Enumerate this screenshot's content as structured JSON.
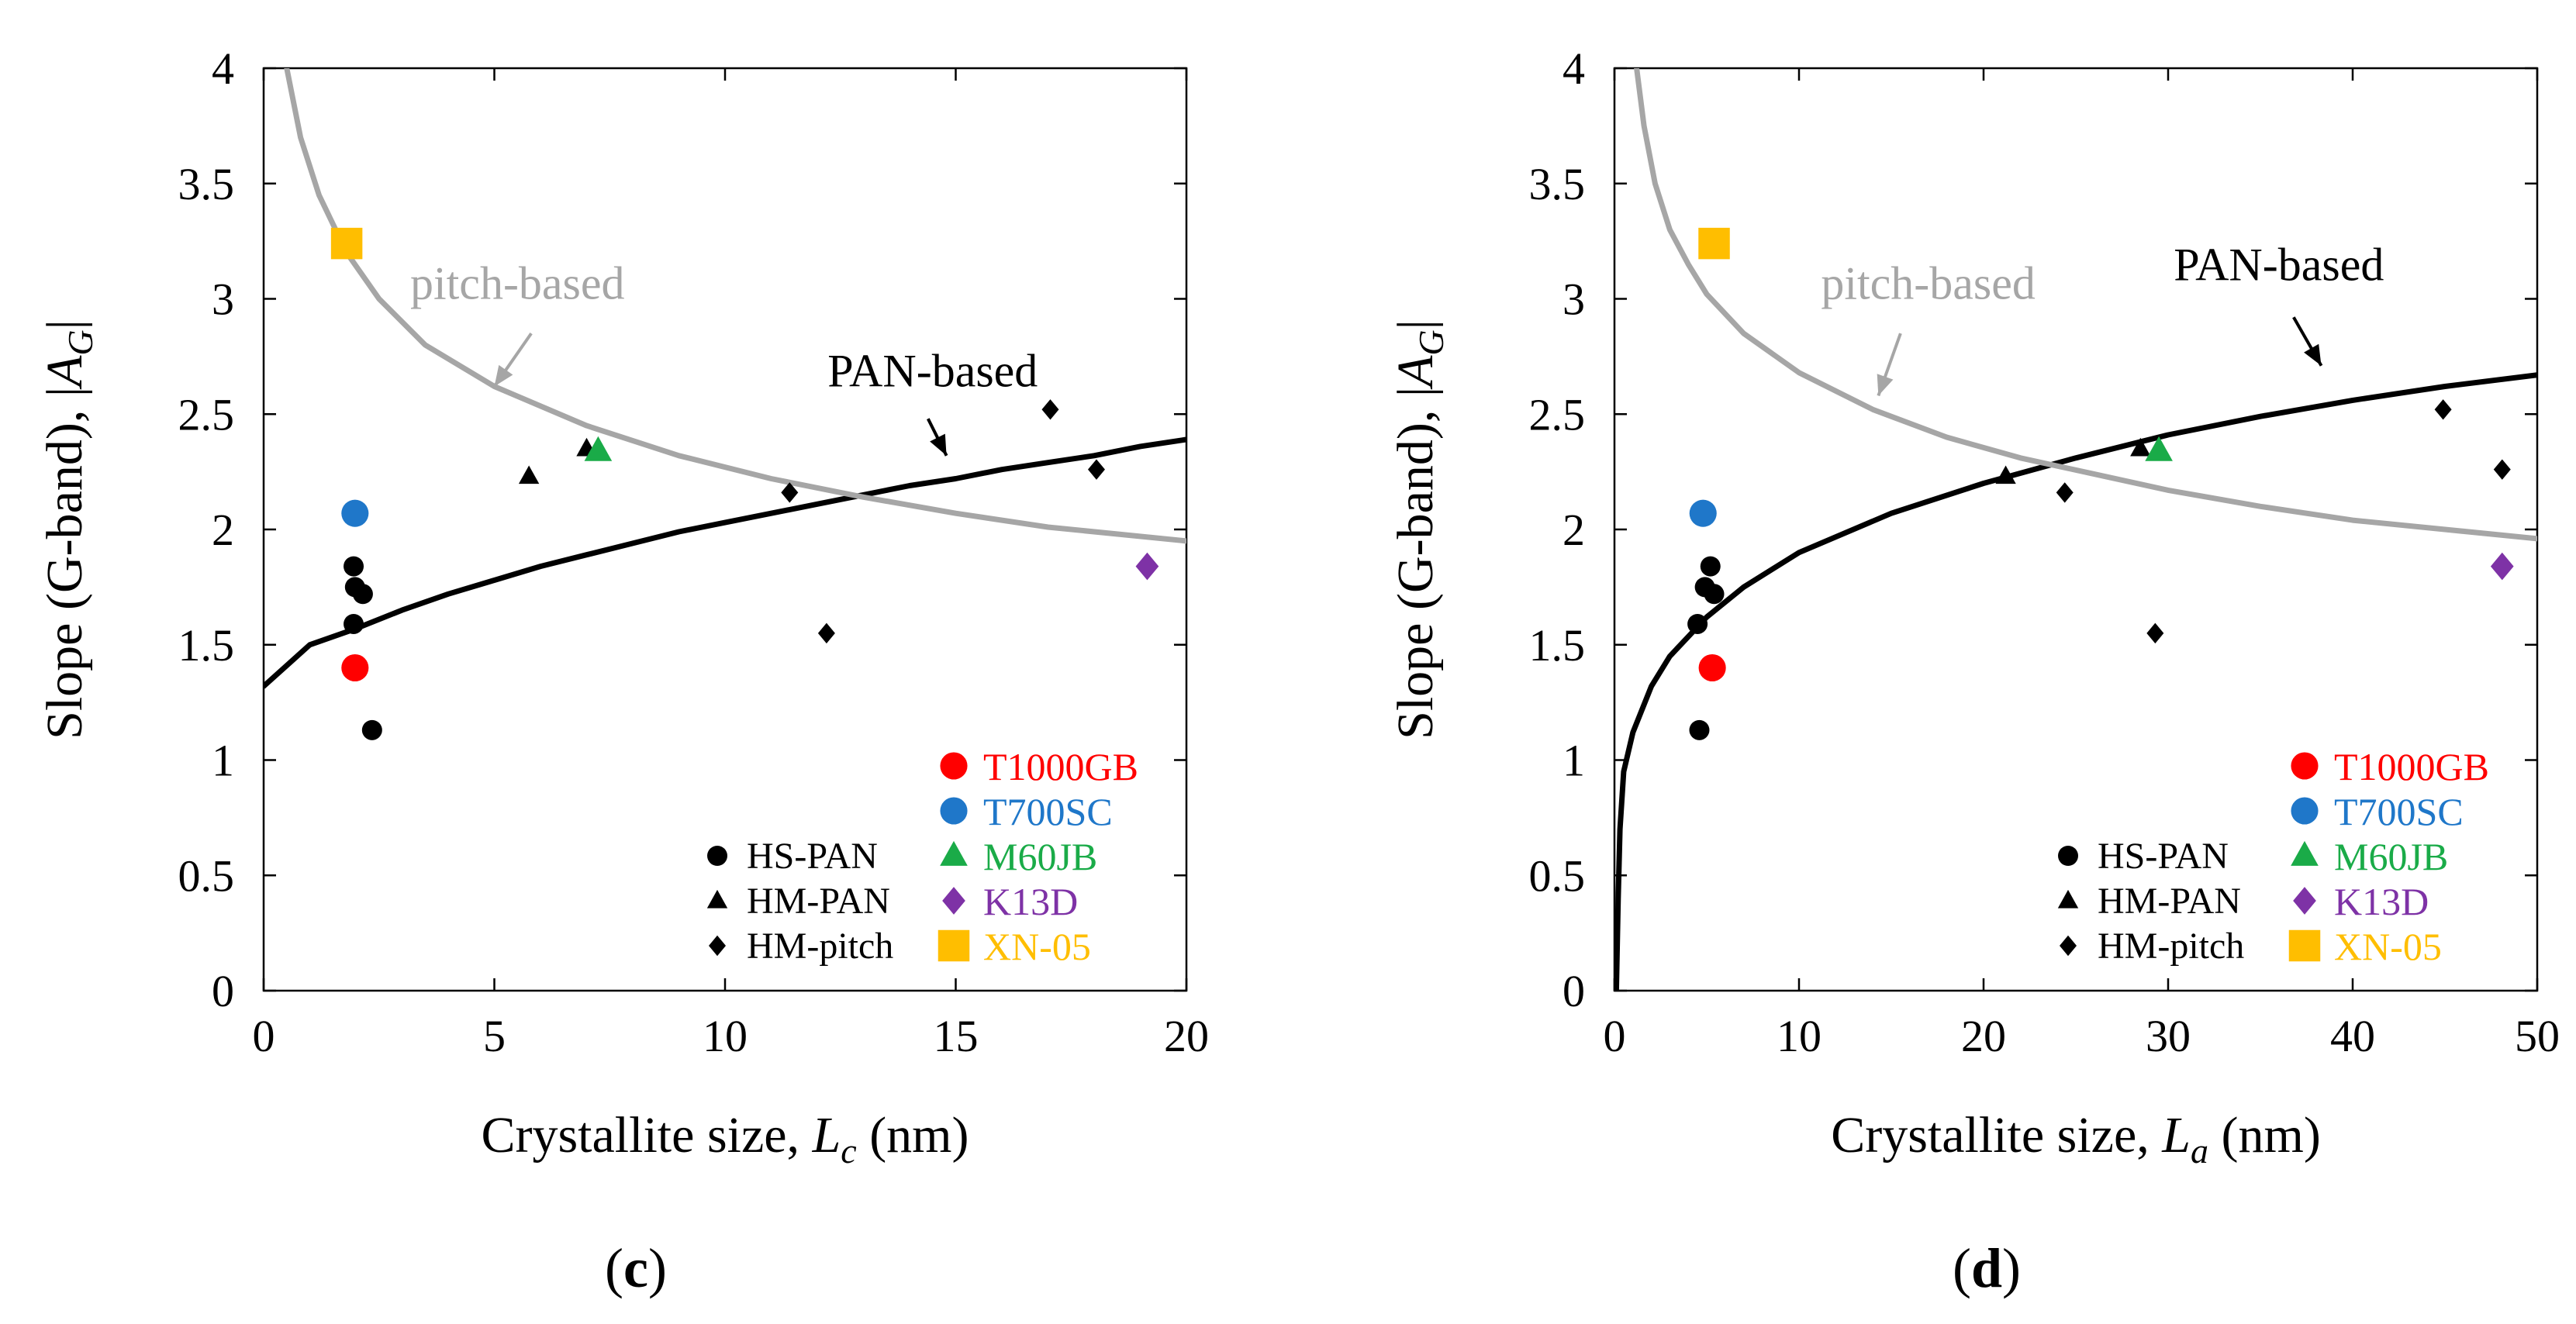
{
  "figure_title": "",
  "chart_data": [
    {
      "panel": "(c)",
      "panel_letter": "c",
      "type": "scatter",
      "title": "",
      "xlabel_main": "Crystallite size, ",
      "xlabel_var": "L",
      "xlabel_sub": "c",
      "xlabel_unit": " (nm)",
      "ylabel_main": "Slope (G-band), |",
      "ylabel_var": "A",
      "ylabel_sub": "G",
      "ylabel_end": "|",
      "xlim": [
        0,
        20
      ],
      "ylim": [
        0,
        4
      ],
      "xticks": [
        "0",
        "5",
        "10",
        "15",
        "20"
      ],
      "yticks": [
        "0",
        "0.5",
        "1",
        "1.5",
        "2",
        "2.5",
        "3",
        "3.5",
        "4"
      ],
      "series": [
        {
          "name": "HS-PAN",
          "marker": "circle",
          "color": "#000000",
          "points": [
            [
              1.95,
              1.84
            ],
            [
              1.98,
              1.75
            ],
            [
              2.15,
              1.72
            ],
            [
              1.95,
              1.59
            ],
            [
              2.35,
              1.13
            ]
          ]
        },
        {
          "name": "HM-PAN",
          "marker": "triangle",
          "color": "#000000",
          "points": [
            [
              5.75,
              2.23
            ],
            [
              7.0,
              2.35
            ]
          ]
        },
        {
          "name": "HM-pitch",
          "marker": "diamond",
          "color": "#000000",
          "points": [
            [
              17.05,
              2.52
            ],
            [
              11.4,
              2.16
            ],
            [
              18.05,
              2.26
            ],
            [
              12.2,
              1.55
            ]
          ]
        },
        {
          "name": "T1000GB",
          "marker": "circle",
          "color": "#ff0000",
          "points": [
            [
              1.98,
              1.4
            ]
          ]
        },
        {
          "name": "T700SC",
          "marker": "circle",
          "color": "#1f77c9",
          "points": [
            [
              1.98,
              2.07
            ]
          ]
        },
        {
          "name": "M60JB",
          "marker": "triangle",
          "color": "#1aab48",
          "points": [
            [
              7.25,
              2.34
            ]
          ]
        },
        {
          "name": "K13D",
          "marker": "diamond",
          "color": "#7e32a6",
          "points": [
            [
              19.15,
              1.84
            ]
          ]
        },
        {
          "name": "XN-05",
          "marker": "square",
          "color": "#ffbe00",
          "points": [
            [
              1.8,
              3.24
            ]
          ]
        }
      ],
      "curves": [
        {
          "name": "PAN-based",
          "color": "#000000",
          "points": [
            [
              0,
              1.32
            ],
            [
              1,
              1.5
            ],
            [
              2,
              1.57
            ],
            [
              3,
              1.65
            ],
            [
              4,
              1.72
            ],
            [
              5,
              1.78
            ],
            [
              6,
              1.84
            ],
            [
              7,
              1.89
            ],
            [
              8,
              1.94
            ],
            [
              9,
              1.99
            ],
            [
              10,
              2.03
            ],
            [
              11,
              2.07
            ],
            [
              12,
              2.11
            ],
            [
              13,
              2.15
            ],
            [
              14,
              2.19
            ],
            [
              15,
              2.22
            ],
            [
              16,
              2.26
            ],
            [
              17,
              2.29
            ],
            [
              18,
              2.32
            ],
            [
              19,
              2.36
            ],
            [
              20,
              2.39
            ]
          ]
        },
        {
          "name": "pitch-based",
          "color": "#a6a6a6",
          "points": [
            [
              0.5,
              4.0
            ],
            [
              0.8,
              3.7
            ],
            [
              1.2,
              3.45
            ],
            [
              1.8,
              3.2
            ],
            [
              2.5,
              3.0
            ],
            [
              3.5,
              2.8
            ],
            [
              5,
              2.62
            ],
            [
              7,
              2.45
            ],
            [
              9,
              2.32
            ],
            [
              11,
              2.22
            ],
            [
              13,
              2.14
            ],
            [
              15,
              2.07
            ],
            [
              17,
              2.01
            ],
            [
              20,
              1.95
            ]
          ]
        }
      ],
      "annotations": [
        {
          "text": "pitch-based",
          "color": "#a6a6a6",
          "x": 5.5,
          "y": 3.0,
          "arrow_from": [
            5.8,
            2.85
          ],
          "arrow_to": [
            5.0,
            2.62
          ]
        },
        {
          "text": "PAN-based",
          "color": "#000000",
          "x": 14.5,
          "y": 2.62,
          "arrow_from": [
            14.4,
            2.48
          ],
          "arrow_to": [
            14.8,
            2.32
          ]
        }
      ],
      "legend_left": [
        "HS-PAN",
        "HM-PAN",
        "HM-pitch"
      ],
      "legend_right": [
        "T1000GB",
        "T700SC",
        "M60JB",
        "K13D",
        "XN-05"
      ]
    },
    {
      "panel": "(d)",
      "panel_letter": "d",
      "type": "scatter",
      "title": "",
      "xlabel_main": "Crystallite size, ",
      "xlabel_var": "L",
      "xlabel_sub": "a",
      "xlabel_unit": " (nm)",
      "ylabel_main": "Slope (G-band), |",
      "ylabel_var": "A",
      "ylabel_sub": "G",
      "ylabel_end": "|",
      "xlim": [
        0,
        50
      ],
      "ylim": [
        0,
        4
      ],
      "xticks": [
        "0",
        "10",
        "20",
        "30",
        "40",
        "50"
      ],
      "yticks": [
        "0",
        "0.5",
        "1",
        "1.5",
        "2",
        "2.5",
        "3",
        "3.5",
        "4"
      ],
      "series": [
        {
          "name": "HS-PAN",
          "marker": "circle",
          "color": "#000000",
          "points": [
            [
              5.2,
              1.84
            ],
            [
              4.9,
              1.75
            ],
            [
              5.4,
              1.72
            ],
            [
              4.5,
              1.59
            ],
            [
              4.6,
              1.13
            ]
          ]
        },
        {
          "name": "HM-PAN",
          "marker": "triangle",
          "color": "#000000",
          "points": [
            [
              21.2,
              2.23
            ],
            [
              28.5,
              2.35
            ]
          ]
        },
        {
          "name": "HM-pitch",
          "marker": "diamond",
          "color": "#000000",
          "points": [
            [
              44.9,
              2.52
            ],
            [
              24.4,
              2.16
            ],
            [
              48.1,
              2.26
            ],
            [
              29.3,
              1.55
            ]
          ]
        },
        {
          "name": "T1000GB",
          "marker": "circle",
          "color": "#ff0000",
          "points": [
            [
              5.3,
              1.4
            ]
          ]
        },
        {
          "name": "T700SC",
          "marker": "circle",
          "color": "#1f77c9",
          "points": [
            [
              4.8,
              2.07
            ]
          ]
        },
        {
          "name": "M60JB",
          "marker": "triangle",
          "color": "#1aab48",
          "points": [
            [
              29.5,
              2.34
            ]
          ]
        },
        {
          "name": "K13D",
          "marker": "diamond",
          "color": "#7e32a6",
          "points": [
            [
              48.1,
              1.84
            ]
          ]
        },
        {
          "name": "XN-05",
          "marker": "square",
          "color": "#ffbe00",
          "points": [
            [
              5.4,
              3.24
            ]
          ]
        }
      ],
      "curves": [
        {
          "name": "PAN-based",
          "color": "#000000",
          "points": [
            [
              0.1,
              0.0
            ],
            [
              0.2,
              0.4
            ],
            [
              0.3,
              0.7
            ],
            [
              0.5,
              0.95
            ],
            [
              1,
              1.12
            ],
            [
              2,
              1.32
            ],
            [
              3,
              1.45
            ],
            [
              5,
              1.62
            ],
            [
              7,
              1.75
            ],
            [
              10,
              1.9
            ],
            [
              15,
              2.07
            ],
            [
              20,
              2.2
            ],
            [
              25,
              2.31
            ],
            [
              30,
              2.41
            ],
            [
              35,
              2.49
            ],
            [
              40,
              2.56
            ],
            [
              45,
              2.62
            ],
            [
              50,
              2.67
            ]
          ]
        },
        {
          "name": "pitch-based",
          "color": "#a6a6a6",
          "points": [
            [
              1.2,
              4.0
            ],
            [
              1.6,
              3.75
            ],
            [
              2.2,
              3.5
            ],
            [
              3,
              3.3
            ],
            [
              4,
              3.15
            ],
            [
              5,
              3.02
            ],
            [
              7,
              2.85
            ],
            [
              10,
              2.68
            ],
            [
              14,
              2.52
            ],
            [
              18,
              2.4
            ],
            [
              22,
              2.31
            ],
            [
              26,
              2.24
            ],
            [
              30,
              2.17
            ],
            [
              35,
              2.1
            ],
            [
              40,
              2.04
            ],
            [
              45,
              2.0
            ],
            [
              50,
              1.96
            ]
          ]
        }
      ],
      "annotations": [
        {
          "text": "pitch-based",
          "color": "#a6a6a6",
          "x": 17.0,
          "y": 3.0,
          "arrow_from": [
            15.5,
            2.85
          ],
          "arrow_to": [
            14.3,
            2.58
          ]
        },
        {
          "text": "PAN-based",
          "color": "#000000",
          "x": 36.0,
          "y": 3.08,
          "arrow_from": [
            36.8,
            2.92
          ],
          "arrow_to": [
            38.3,
            2.71
          ]
        }
      ],
      "legend_left": [
        "HS-PAN",
        "HM-PAN",
        "HM-pitch"
      ],
      "legend_right": [
        "T1000GB",
        "T700SC",
        "M60JB",
        "K13D",
        "XN-05"
      ]
    }
  ]
}
